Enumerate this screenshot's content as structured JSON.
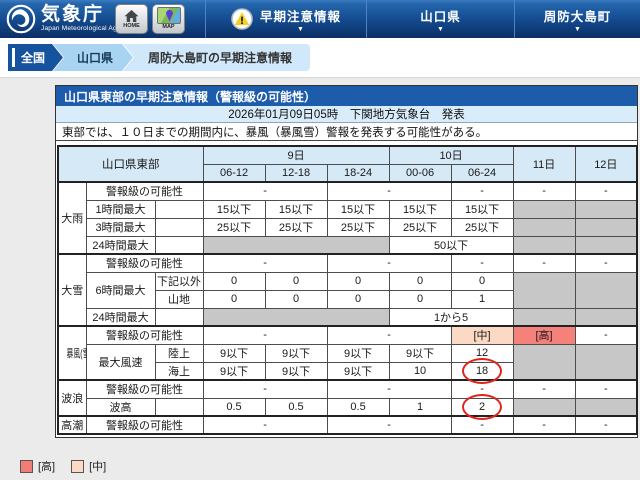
{
  "header": {
    "brand": {
      "title": "気象庁",
      "subtitle": "Japan Meteorological Agency"
    },
    "home_button": "HOME",
    "map_button": "MAP",
    "nav_items": [
      {
        "label": "早期注意情報"
      },
      {
        "label": "山口県"
      },
      {
        "label": "周防大島町"
      }
    ]
  },
  "breadcrumb": {
    "items": [
      "全国",
      "山口県",
      "周防大島町の早期注意情報"
    ]
  },
  "panel": {
    "title": "山口県東部の早期注意情報（警報級の可能性）",
    "issued": "2026年01月09日05時　下関地方気象台　発表",
    "description": "東部では、１０日までの期間内に、暴風（暴風雪）警報を発表する可能性がある。"
  },
  "table": {
    "corner_label": "山口県東部",
    "day_headers": [
      {
        "label": "9日",
        "colspan": 3,
        "rowspan": 1
      },
      {
        "label": "10日",
        "colspan": 2,
        "rowspan": 1
      },
      {
        "label": "11日",
        "colspan": 1,
        "rowspan": 2
      },
      {
        "label": "12日",
        "colspan": 1,
        "rowspan": 2
      }
    ],
    "time_headers": [
      "06-12",
      "12-18",
      "18-24",
      "00-06",
      "06-24"
    ],
    "section_start_rows": [
      0,
      4,
      8,
      11,
      13
    ],
    "rows": [
      [
        {
          "k": "g",
          "t": "大雨",
          "r": 4
        },
        {
          "k": "i",
          "t": "警報級の可能性",
          "c": 2
        },
        {
          "k": "v",
          "t": "-",
          "c": 2
        },
        {
          "k": "v",
          "t": "-",
          "c": 2
        },
        {
          "k": "v",
          "t": "-"
        },
        {
          "k": "v",
          "t": "-"
        },
        {
          "k": "v",
          "t": "-"
        }
      ],
      [
        {
          "k": "i",
          "t": "1時間最大"
        },
        {
          "k": "s",
          "t": ""
        },
        {
          "k": "v",
          "t": "15以下"
        },
        {
          "k": "v",
          "t": "15以下"
        },
        {
          "k": "v",
          "t": "15以下"
        },
        {
          "k": "v",
          "t": "15以下"
        },
        {
          "k": "v",
          "t": "15以下"
        },
        {
          "k": "x",
          "t": ""
        },
        {
          "k": "x",
          "t": ""
        }
      ],
      [
        {
          "k": "i",
          "t": "3時間最大"
        },
        {
          "k": "s",
          "t": ""
        },
        {
          "k": "v",
          "t": "25以下"
        },
        {
          "k": "v",
          "t": "25以下"
        },
        {
          "k": "v",
          "t": "25以下"
        },
        {
          "k": "v",
          "t": "25以下"
        },
        {
          "k": "v",
          "t": "25以下"
        },
        {
          "k": "x",
          "t": ""
        },
        {
          "k": "x",
          "t": ""
        }
      ],
      [
        {
          "k": "i",
          "t": "24時間最大"
        },
        {
          "k": "s",
          "t": ""
        },
        {
          "k": "x",
          "t": "",
          "c": 3
        },
        {
          "k": "v",
          "t": "50以下",
          "c": 2
        },
        {
          "k": "x",
          "t": ""
        },
        {
          "k": "x",
          "t": ""
        }
      ],
      [
        {
          "k": "g",
          "t": "大雪",
          "r": 4
        },
        {
          "k": "i",
          "t": "警報級の可能性",
          "c": 2
        },
        {
          "k": "v",
          "t": "-",
          "c": 2
        },
        {
          "k": "v",
          "t": "-",
          "c": 2
        },
        {
          "k": "v",
          "t": "-"
        },
        {
          "k": "v",
          "t": "-"
        },
        {
          "k": "v",
          "t": "-"
        }
      ],
      [
        {
          "k": "i",
          "t": "6時間最大",
          "r": 2
        },
        {
          "k": "s",
          "t": "下記以外"
        },
        {
          "k": "v",
          "t": "0"
        },
        {
          "k": "v",
          "t": "0"
        },
        {
          "k": "v",
          "t": "0"
        },
        {
          "k": "v",
          "t": "0"
        },
        {
          "k": "v",
          "t": "0"
        },
        {
          "k": "x",
          "t": "",
          "r": 2
        },
        {
          "k": "x",
          "t": "",
          "r": 2
        }
      ],
      [
        {
          "k": "s",
          "t": "山地"
        },
        {
          "k": "v",
          "t": "0"
        },
        {
          "k": "v",
          "t": "0"
        },
        {
          "k": "v",
          "t": "0"
        },
        {
          "k": "v",
          "t": "0"
        },
        {
          "k": "v",
          "t": "1"
        }
      ],
      [
        {
          "k": "i",
          "t": "24時間最大"
        },
        {
          "k": "s",
          "t": ""
        },
        {
          "k": "x",
          "t": "",
          "c": 3
        },
        {
          "k": "v",
          "t": "1から5",
          "c": 2
        },
        {
          "k": "x",
          "t": ""
        },
        {
          "k": "x",
          "t": ""
        }
      ],
      [
        {
          "k": "g",
          "t": "暴風(雪)",
          "r": 3
        },
        {
          "k": "i",
          "t": "警報級の可能性",
          "c": 2
        },
        {
          "k": "v",
          "t": "-",
          "c": 2
        },
        {
          "k": "v",
          "t": "-",
          "c": 2
        },
        {
          "k": "m",
          "t": "[中]"
        },
        {
          "k": "h",
          "t": "[高]"
        },
        {
          "k": "v",
          "t": "-"
        }
      ],
      [
        {
          "k": "i",
          "t": "最大風速",
          "r": 2
        },
        {
          "k": "s",
          "t": "陸上"
        },
        {
          "k": "v",
          "t": "9以下"
        },
        {
          "k": "v",
          "t": "9以下"
        },
        {
          "k": "v",
          "t": "9以下"
        },
        {
          "k": "v",
          "t": "9以下"
        },
        {
          "k": "v",
          "t": "12"
        },
        {
          "k": "x",
          "t": "",
          "r": 2
        },
        {
          "k": "x",
          "t": "",
          "r": 2
        }
      ],
      [
        {
          "k": "s",
          "t": "海上"
        },
        {
          "k": "v",
          "t": "9以下"
        },
        {
          "k": "v",
          "t": "9以下"
        },
        {
          "k": "v",
          "t": "9以下"
        },
        {
          "k": "v",
          "t": "10"
        },
        {
          "k": "v",
          "t": "18",
          "circ": true
        }
      ],
      [
        {
          "k": "g",
          "t": "波浪",
          "r": 2
        },
        {
          "k": "i",
          "t": "警報級の可能性",
          "c": 2
        },
        {
          "k": "v",
          "t": "-",
          "c": 2
        },
        {
          "k": "v",
          "t": "-",
          "c": 2
        },
        {
          "k": "v",
          "t": "-"
        },
        {
          "k": "v",
          "t": "-"
        },
        {
          "k": "v",
          "t": "-"
        }
      ],
      [
        {
          "k": "i",
          "t": "波高"
        },
        {
          "k": "s",
          "t": ""
        },
        {
          "k": "v",
          "t": "0.5"
        },
        {
          "k": "v",
          "t": "0.5"
        },
        {
          "k": "v",
          "t": "0.5"
        },
        {
          "k": "v",
          "t": "1"
        },
        {
          "k": "v",
          "t": "2",
          "circ": true
        },
        {
          "k": "x",
          "t": ""
        },
        {
          "k": "x",
          "t": ""
        }
      ],
      [
        {
          "k": "g",
          "t": "高潮"
        },
        {
          "k": "i",
          "t": "警報級の可能性",
          "c": 2
        },
        {
          "k": "v",
          "t": "-",
          "c": 2
        },
        {
          "k": "v",
          "t": "-",
          "c": 2
        },
        {
          "k": "v",
          "t": "-"
        },
        {
          "k": "v",
          "t": "-"
        },
        {
          "k": "v",
          "t": "-"
        }
      ]
    ]
  },
  "legend": [
    {
      "label": "[高]",
      "level": "high"
    },
    {
      "label": "[中]",
      "level": "mid"
    }
  ],
  "colors": {
    "page_bg": "#ebebeb",
    "nav_top": "#2466ad",
    "nav_mid": "#13498c",
    "nav_bottom": "#0b2f66",
    "accent_blue": "#1d5cab",
    "subheader_bg": "#d9ecf9",
    "thead_bg": "#d6e9f7",
    "gray_cell": "#c7c7c7",
    "mid_bg": "#fbd9c4",
    "high_bg": "#f5817b",
    "high_text": "#9c2f28",
    "circle_red": "#df241d",
    "crumb_dark": "#15539e",
    "crumb_mid": "#a9d4f1",
    "crumb_light": "#d0e8fa",
    "legend_high": "#ef7d78",
    "legend_mid": "#fbd9c4",
    "border_dark": "#333333"
  }
}
